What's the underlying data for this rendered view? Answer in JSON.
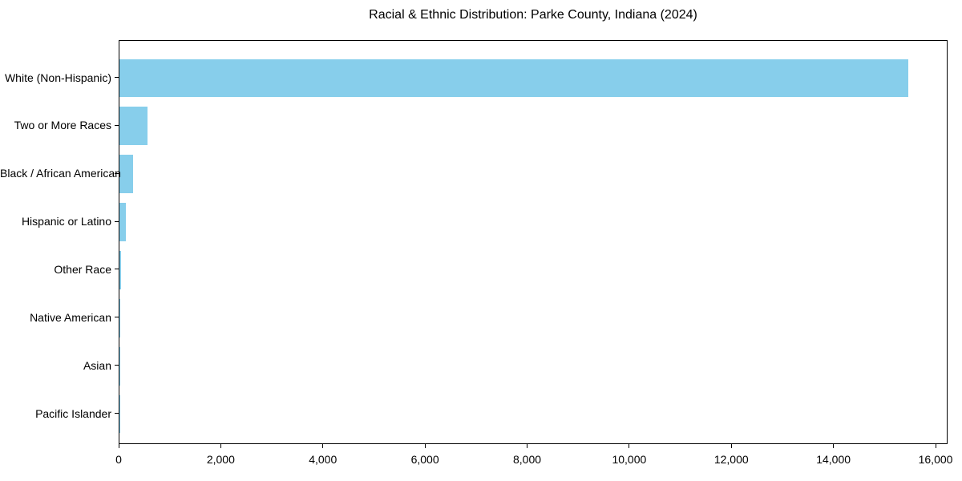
{
  "chart_data": {
    "type": "bar",
    "orientation": "horizontal",
    "title": "Racial & Ethnic Distribution: Parke County, Indiana (2024)",
    "categories": [
      "White (Non-Hispanic)",
      "Two or More Races",
      "Black / African American",
      "Hispanic or Latino",
      "Other Race",
      "Native American",
      "Asian",
      "Pacific Islander"
    ],
    "values": [
      15450,
      545,
      267,
      126,
      24,
      12,
      8,
      2
    ],
    "bar_color": "#87CEEB",
    "xlabel": "",
    "ylabel": "",
    "xlim": [
      0,
      16235
    ],
    "x_ticks": [
      0,
      2000,
      4000,
      6000,
      8000,
      10000,
      12000,
      14000,
      16000
    ],
    "x_tick_labels": [
      "0",
      "2,000",
      "4,000",
      "6,000",
      "8,000",
      "10,000",
      "12,000",
      "14,000",
      "16,000"
    ],
    "grid": false,
    "legend": "none",
    "background_color": "#ffffff",
    "text_color": "#000000"
  }
}
